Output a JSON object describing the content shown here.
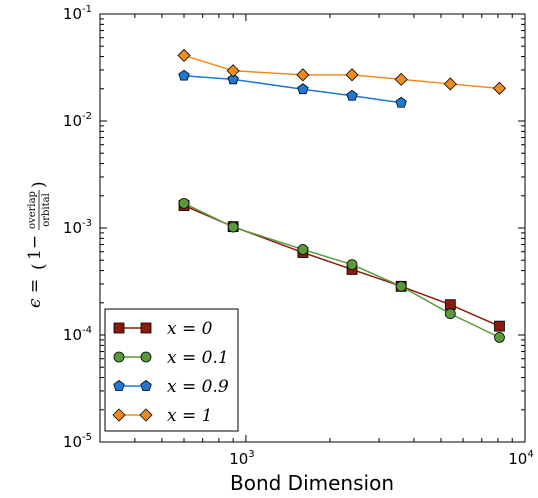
{
  "chart_data": {
    "type": "line",
    "title": "",
    "xlabel": "Bond Dimension",
    "ylabel": {
      "lhs": "ϵ = ",
      "one_minus": "1−",
      "numerator": "overlap",
      "denominator": "orbital"
    },
    "xscale": "log",
    "yscale": "log",
    "xlim": [
      300,
      10000
    ],
    "ylim": [
      1e-05,
      0.1
    ],
    "x_ticks": [
      {
        "value": 1000,
        "base": "10",
        "exp": "3"
      },
      {
        "value": 10000,
        "base": "10",
        "exp": "4"
      }
    ],
    "y_ticks": [
      {
        "value": 0.1,
        "base": "10",
        "exp": "-1"
      },
      {
        "value": 0.01,
        "base": "10",
        "exp": "-2"
      },
      {
        "value": 0.001,
        "base": "10",
        "exp": "-3"
      },
      {
        "value": 0.0001,
        "base": "10",
        "exp": "-4"
      },
      {
        "value": 1e-05,
        "base": "10",
        "exp": "-5"
      }
    ],
    "grid": false,
    "legend_position": "bottom-left",
    "series": [
      {
        "name": "x = 0",
        "color": "#8b1a0e",
        "marker": "square",
        "x": [
          600,
          900,
          1600,
          2400,
          3600,
          5400,
          8100
        ],
        "y": [
          0.00162,
          0.00103,
          0.00059,
          0.00041,
          0.000285,
          0.000192,
          0.000121
        ]
      },
      {
        "name": "x = 0.1",
        "color": "#5a9a3a",
        "marker": "circle",
        "x": [
          600,
          900,
          1600,
          2400,
          3600,
          5400,
          8100
        ],
        "y": [
          0.0017,
          0.00102,
          0.00063,
          0.000455,
          0.000285,
          0.000158,
          9.5e-05
        ]
      },
      {
        "name": "x = 0.9",
        "color": "#1f78d4",
        "marker": "pentagon",
        "x": [
          600,
          900,
          1600,
          2400,
          3600
        ],
        "y": [
          0.0265,
          0.0245,
          0.0198,
          0.0172,
          0.0148
        ]
      },
      {
        "name": "x = 1",
        "color": "#f08c1e",
        "marker": "diamond",
        "x": [
          600,
          900,
          1600,
          2400,
          3600,
          5400,
          8100
        ],
        "y": [
          0.041,
          0.0295,
          0.027,
          0.027,
          0.0245,
          0.0222,
          0.0202
        ]
      }
    ]
  }
}
